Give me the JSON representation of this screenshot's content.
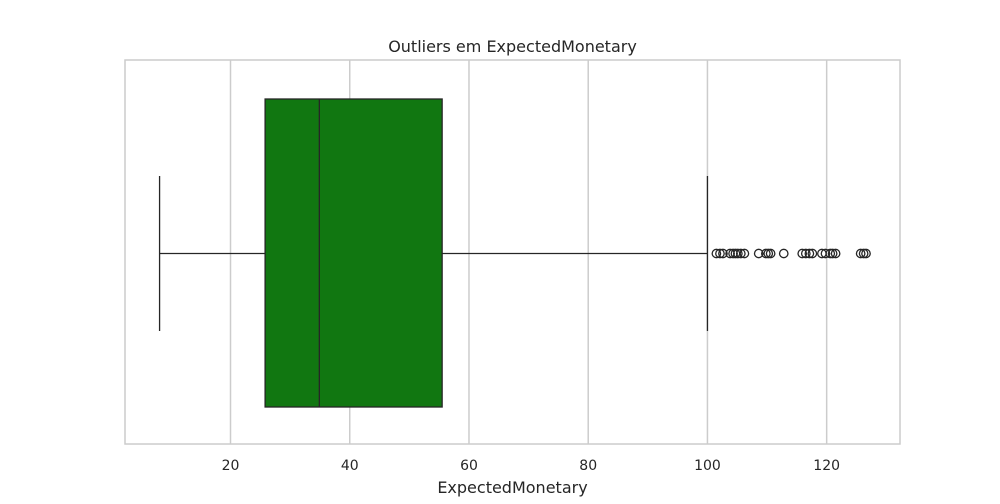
{
  "chart_data": {
    "type": "box",
    "title": "Outliers em ExpectedMonetary",
    "xlabel": "ExpectedMonetary",
    "ylabel": "",
    "orientation": "horizontal",
    "xlim": [
      2.3,
      132.3
    ],
    "xticks": [
      20,
      40,
      60,
      80,
      100,
      120
    ],
    "grid": true,
    "box": {
      "whisker_low": 8.1,
      "q1": 25.8,
      "median": 34.9,
      "q3": 55.5,
      "whisker_high": 100.0
    },
    "outliers": [
      101.5,
      102.1,
      102.6,
      103.8,
      104.3,
      104.7,
      105.1,
      105.6,
      106.2,
      108.6,
      109.8,
      110.2,
      110.6,
      112.8,
      115.9,
      116.5,
      117.1,
      117.6,
      119.2,
      119.8,
      120.6,
      121.0,
      121.5,
      125.7,
      126.2,
      126.6
    ],
    "colors": {
      "box_fill": "#117711",
      "line": "#262626",
      "grid": "#cccccc",
      "frame": "#cccccc",
      "outlier_edge": "#262626"
    }
  }
}
